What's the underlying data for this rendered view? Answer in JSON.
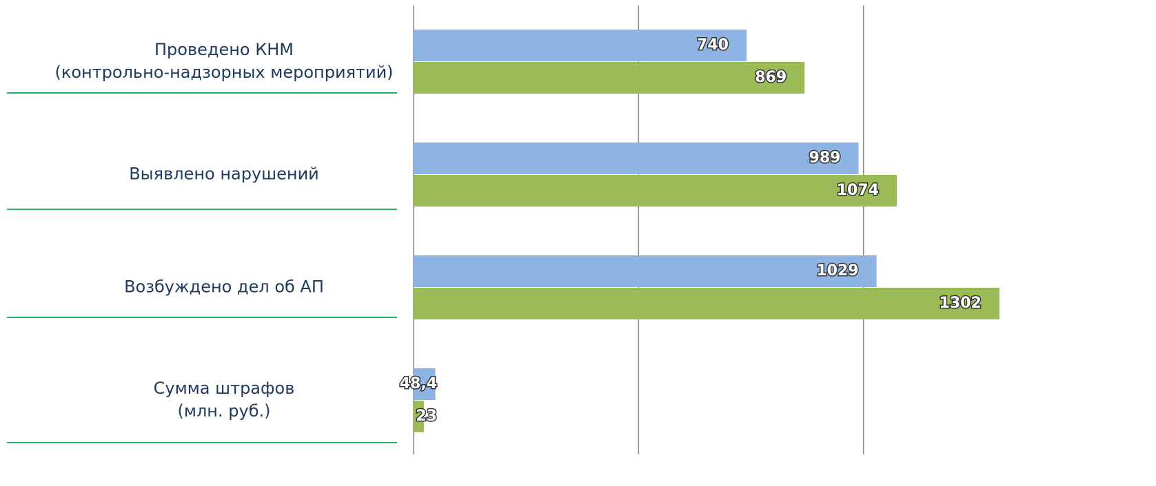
{
  "chart_data": {
    "type": "bar",
    "orientation": "horizontal",
    "categories": [
      "Проведено КНМ\n(контрольно-надзорных мероприятий)",
      "Выявлено нарушений",
      "Возбуждено дел об АП",
      "Сумма штрафов\n(млн. руб.)"
    ],
    "series": [
      {
        "color": "#8eb4e3",
        "values": [
          740,
          989,
          1029,
          48.4
        ],
        "value_labels": [
          "740",
          "989",
          "1029",
          "48,4"
        ]
      },
      {
        "color": "#9bbb59",
        "values": [
          869,
          1074,
          1302,
          23
        ],
        "value_labels": [
          "869",
          "1074",
          "1302",
          "23"
        ]
      }
    ],
    "xlim": [
      0,
      1500
    ],
    "xticks": [
      0,
      500,
      1000
    ],
    "grid": true
  }
}
